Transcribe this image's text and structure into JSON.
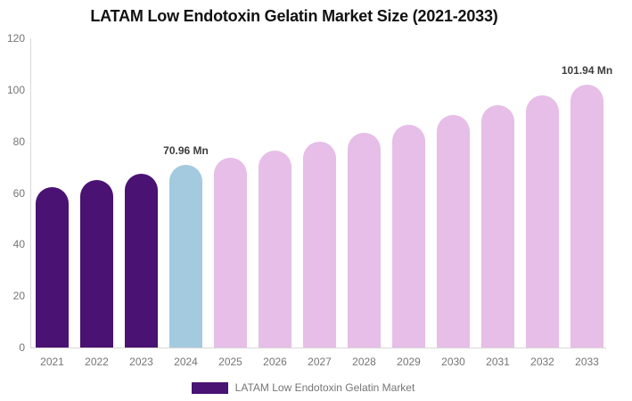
{
  "title": "LATAM Low Endotoxin Gelatin Market Size (2021-2033)",
  "legend": {
    "label": "LATAM Low Endotoxin Gelatin Market",
    "swatch_color": "#4A1273"
  },
  "colors": {
    "dark_purple": "#4A1273",
    "light_blue": "#A3CADF",
    "light_pink": "#E6BEE7",
    "axis_line": "#D8D8D8",
    "tick_text": "#757575",
    "annotation_text": "#3D3D3D",
    "title_text": "#111111"
  },
  "chart_data": {
    "type": "bar",
    "title": "LATAM Low Endotoxin Gelatin Market Size (2021-2033)",
    "unit": "Mn",
    "categories": [
      "2021",
      "2022",
      "2023",
      "2024",
      "2025",
      "2026",
      "2027",
      "2028",
      "2029",
      "2030",
      "2031",
      "2032",
      "2033"
    ],
    "values": [
      62.1,
      64.9,
      67.5,
      70.96,
      73.5,
      76.5,
      80.0,
      83.2,
      86.5,
      90.2,
      93.9,
      97.7,
      101.94
    ],
    "bar_colors": [
      "#4A1273",
      "#4A1273",
      "#4A1273",
      "#A3CADF",
      "#E6BEE7",
      "#E6BEE7",
      "#E6BEE7",
      "#E6BEE7",
      "#E6BEE7",
      "#E6BEE7",
      "#E6BEE7",
      "#E6BEE7",
      "#E6BEE7"
    ],
    "annotations": [
      {
        "category": "2024",
        "index": 3,
        "text": "70.96 Mn"
      },
      {
        "category": "2033",
        "index": 12,
        "text": "101.94 Mn"
      }
    ],
    "series": [
      {
        "name": "LATAM Low Endotoxin Gelatin Market",
        "values": [
          62.1,
          64.9,
          67.5,
          70.96,
          73.5,
          76.5,
          80.0,
          83.2,
          86.5,
          90.2,
          93.9,
          97.7,
          101.94
        ]
      }
    ],
    "xlabel": "",
    "ylabel": "",
    "ylim": [
      0,
      120
    ],
    "yticks": [
      0,
      20,
      40,
      60,
      80,
      100,
      120
    ],
    "grid": false,
    "legend_position": "bottom"
  }
}
